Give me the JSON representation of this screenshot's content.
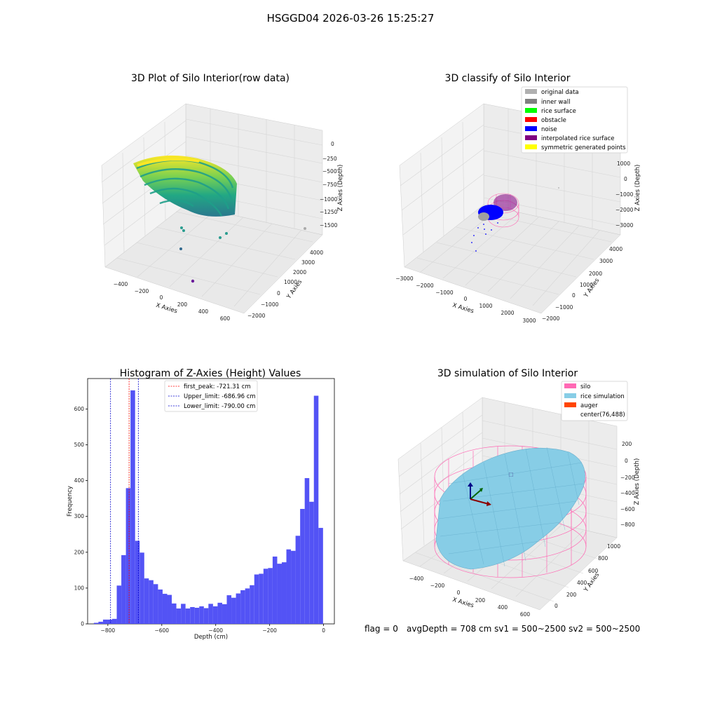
{
  "suptitle": "HSGGD04 2026-03-26 15:25:27",
  "footer": {
    "flag": "flag = 0",
    "info": "avgDepth = 708 cm  sv1 = 500~2500  sv2 = 500~2500"
  },
  "colors": {
    "hist_bar": "#5050f5",
    "peak_line": "#ff0000",
    "limit_line": "#0000cc",
    "silo": "#ff69b4",
    "rice": "#87cde6",
    "auger": "#ff4500",
    "pane": "#f2f2f2",
    "grid": "#d9d9d9"
  },
  "chart_data": [
    {
      "type": "scatter",
      "projection": "3d",
      "title": "3D Plot of Silo Interior(row data)",
      "xlabel": "X Axies",
      "ylabel": "Y Axies",
      "zlabel": "Z Axies (Depth)",
      "xticks": [
        "−400",
        "−200",
        "0",
        "200",
        "400",
        "600"
      ],
      "yticks": [
        "−2000",
        "−1000",
        "0",
        "1000",
        "2000",
        "3000",
        "4000"
      ],
      "zticks": [
        "0",
        "−250",
        "−500",
        "−750",
        "−1000",
        "−1250",
        "−1500"
      ],
      "colormap": "viridis",
      "grid": true
    },
    {
      "type": "scatter",
      "projection": "3d",
      "title": "3D classify of Silo Interior",
      "xlabel": "X Axies",
      "ylabel": "Y Axies",
      "zlabel": "Z Axies (Depth)",
      "xticks": [
        "−3000",
        "−2000",
        "−1000",
        "0",
        "1000",
        "2000",
        "3000"
      ],
      "yticks": [
        "−2000",
        "−1000",
        "0",
        "1000",
        "2000",
        "3000",
        "4000"
      ],
      "zticks": [
        "1000",
        "0",
        "−1000",
        "−2000",
        "−3000"
      ],
      "legend_position": "top-right",
      "legend": [
        {
          "label": "original data",
          "color": "#b0b0b0"
        },
        {
          "label": "inner wall",
          "color": "#808080"
        },
        {
          "label": "rice surface",
          "color": "#00ff00"
        },
        {
          "label": "obstacle",
          "color": "#ff0000"
        },
        {
          "label": "noise",
          "color": "#0000ff"
        },
        {
          "label": "interpolated rice surface",
          "color": "#800080"
        },
        {
          "label": "symmetric generated points",
          "color": "#ffff00"
        }
      ],
      "grid": true
    },
    {
      "type": "bar",
      "title": "Histogram of Z-Axies (Height) Values",
      "xlabel": "Depth (cm)",
      "ylabel": "Frequency",
      "xlim": [
        -875,
        40
      ],
      "ylim": [
        0,
        685
      ],
      "xticks": [
        -800,
        -600,
        -400,
        -200,
        0
      ],
      "xtick_labels": [
        "−800",
        "−600",
        "−400",
        "−200",
        "0"
      ],
      "yticks": [
        0,
        100,
        200,
        300,
        400,
        500,
        600
      ],
      "bin_start": -852,
      "bin_width": 17,
      "values": [
        3,
        6,
        12,
        12,
        14,
        107,
        192,
        379,
        652,
        232,
        199,
        127,
        122,
        111,
        96,
        84,
        81,
        57,
        43,
        56,
        43,
        47,
        45,
        49,
        44,
        56,
        49,
        59,
        55,
        80,
        73,
        85,
        94,
        99,
        108,
        138,
        140,
        154,
        156,
        188,
        168,
        172,
        208,
        204,
        246,
        321,
        407,
        341,
        637,
        268
      ],
      "lines": [
        {
          "label": "first_peak: -721.31 cm",
          "x": -721.31,
          "style": "dashed",
          "color": "#ff0000"
        },
        {
          "label": "Upper_limit: -686.96 cm",
          "x": -686.96,
          "style": "dashed",
          "color": "#0000cc"
        },
        {
          "label": "Lower_limit: -790.00 cm",
          "x": -790.0,
          "style": "dashed",
          "color": "#0000cc"
        }
      ],
      "legend_position": "top-center"
    },
    {
      "type": "surface",
      "projection": "3d",
      "title": "3D simulation of Silo Interior",
      "xlabel": "X Axies",
      "ylabel": "Y Axies",
      "zlabel": "Z Axies (Depth)",
      "xticks": [
        "−400",
        "−200",
        "0",
        "200",
        "400",
        "600"
      ],
      "yticks": [
        "0",
        "200",
        "400",
        "600",
        "800",
        "1000"
      ],
      "zticks": [
        "200",
        "0",
        "−200",
        "−400",
        "−600",
        "−800"
      ],
      "legend_position": "top-right",
      "legend": [
        {
          "label": "silo",
          "color": "#ff69b4"
        },
        {
          "label": "rice simulation",
          "color": "#87cde6"
        },
        {
          "label": "auger",
          "color": "#ff4500"
        },
        {
          "label": "center(76,488)",
          "color": ""
        }
      ],
      "grid": true
    }
  ]
}
